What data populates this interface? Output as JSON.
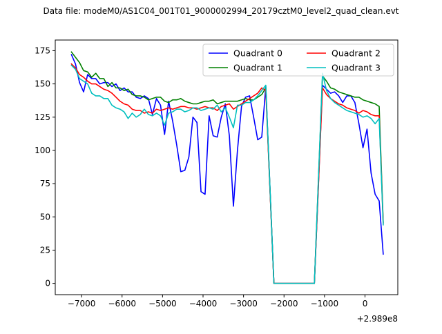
{
  "chart_data": {
    "type": "line",
    "title": "Data file: modeM0/AS1C04_001T01_9000002994_20179cztM0_level2_quad_clean.evt",
    "xlabel": "",
    "ylabel": "",
    "x_offset_label": "+2.989e8",
    "xlim": [
      -7650,
      810
    ],
    "ylim": [
      -8.5,
      183
    ],
    "xticks": [
      -7000,
      -6000,
      -5000,
      -4000,
      -3000,
      -2000,
      -1000,
      0
    ],
    "yticks": [
      0,
      25,
      50,
      75,
      100,
      125,
      150,
      175
    ],
    "grid": false,
    "legend": {
      "placement": "top-right",
      "columns": 2
    },
    "series": [
      {
        "name": "Quadrant 0",
        "color": "#0000ff",
        "points": [
          [
            -7250,
            172
          ],
          [
            -7150,
            165
          ],
          [
            -7050,
            151
          ],
          [
            -6950,
            144
          ],
          [
            -6850,
            157
          ],
          [
            -6750,
            154
          ],
          [
            -6650,
            154
          ],
          [
            -6550,
            150
          ],
          [
            -6450,
            151
          ],
          [
            -6350,
            151
          ],
          [
            -6250,
            148
          ],
          [
            -6150,
            150
          ],
          [
            -6050,
            145
          ],
          [
            -5950,
            147
          ],
          [
            -5850,
            144
          ],
          [
            -5750,
            144
          ],
          [
            -5650,
            140
          ],
          [
            -5550,
            139
          ],
          [
            -5450,
            141
          ],
          [
            -5350,
            139
          ],
          [
            -5250,
            127
          ],
          [
            -5150,
            139
          ],
          [
            -5050,
            134
          ],
          [
            -4950,
            112
          ],
          [
            -4850,
            137
          ],
          [
            -4750,
            122
          ],
          [
            -4650,
            104
          ],
          [
            -4550,
            84
          ],
          [
            -4450,
            85
          ],
          [
            -4350,
            95
          ],
          [
            -4250,
            125
          ],
          [
            -4150,
            121
          ],
          [
            -4050,
            69
          ],
          [
            -3950,
            67
          ],
          [
            -3850,
            126
          ],
          [
            -3750,
            111
          ],
          [
            -3650,
            110
          ],
          [
            -3550,
            125
          ],
          [
            -3450,
            135
          ],
          [
            -3350,
            111
          ],
          [
            -3250,
            58
          ],
          [
            -3150,
            100
          ],
          [
            -3050,
            133
          ],
          [
            -2950,
            140
          ],
          [
            -2850,
            141
          ],
          [
            -2750,
            125
          ],
          [
            -2650,
            108
          ],
          [
            -2550,
            110
          ],
          [
            -2450,
            148
          ],
          [
            -2250,
            0
          ],
          [
            -1250,
            0
          ],
          [
            -1050,
            149
          ],
          [
            -950,
            146
          ],
          [
            -850,
            143
          ],
          [
            -750,
            144
          ],
          [
            -650,
            141
          ],
          [
            -550,
            136
          ],
          [
            -450,
            141
          ],
          [
            -350,
            141
          ],
          [
            -250,
            136
          ],
          [
            -150,
            120
          ],
          [
            -50,
            102
          ],
          [
            50,
            116
          ],
          [
            150,
            83
          ],
          [
            250,
            67
          ],
          [
            350,
            62
          ],
          [
            450,
            22
          ]
        ]
      },
      {
        "name": "Quadrant 1",
        "color": "#008000",
        "points": [
          [
            -7250,
            174
          ],
          [
            -7150,
            170
          ],
          [
            -7050,
            166
          ],
          [
            -6950,
            160
          ],
          [
            -6850,
            159
          ],
          [
            -6750,
            155
          ],
          [
            -6650,
            158
          ],
          [
            -6550,
            154
          ],
          [
            -6450,
            154
          ],
          [
            -6350,
            148
          ],
          [
            -6250,
            151
          ],
          [
            -6150,
            147
          ],
          [
            -6050,
            147
          ],
          [
            -5950,
            145
          ],
          [
            -5850,
            146
          ],
          [
            -5750,
            142
          ],
          [
            -5650,
            141
          ],
          [
            -5550,
            141
          ],
          [
            -5450,
            140
          ],
          [
            -5350,
            138
          ],
          [
            -5250,
            139
          ],
          [
            -5150,
            140
          ],
          [
            -5050,
            140
          ],
          [
            -4950,
            137
          ],
          [
            -4850,
            136
          ],
          [
            -4750,
            138
          ],
          [
            -4650,
            138
          ],
          [
            -4550,
            139
          ],
          [
            -4450,
            137
          ],
          [
            -4350,
            136
          ],
          [
            -4250,
            135
          ],
          [
            -4150,
            135
          ],
          [
            -4050,
            136
          ],
          [
            -3950,
            137
          ],
          [
            -3850,
            137
          ],
          [
            -3750,
            138
          ],
          [
            -3650,
            135
          ],
          [
            -3550,
            136
          ],
          [
            -3450,
            137
          ],
          [
            -3350,
            137
          ],
          [
            -3250,
            137
          ],
          [
            -3150,
            137
          ],
          [
            -3050,
            138
          ],
          [
            -2950,
            139
          ],
          [
            -2850,
            138
          ],
          [
            -2750,
            138
          ],
          [
            -2650,
            140
          ],
          [
            -2550,
            142
          ],
          [
            -2450,
            147
          ],
          [
            -2250,
            0
          ],
          [
            -1250,
            0
          ],
          [
            -1050,
            156
          ],
          [
            -950,
            152
          ],
          [
            -850,
            147
          ],
          [
            -750,
            146
          ],
          [
            -650,
            144
          ],
          [
            -550,
            143
          ],
          [
            -450,
            142
          ],
          [
            -350,
            141
          ],
          [
            -250,
            140
          ],
          [
            -150,
            140
          ],
          [
            -50,
            138
          ],
          [
            50,
            137
          ],
          [
            150,
            136
          ],
          [
            250,
            135
          ],
          [
            350,
            133
          ],
          [
            450,
            46
          ]
        ]
      },
      {
        "name": "Quadrant 2",
        "color": "#ff0000",
        "points": [
          [
            -7250,
            165
          ],
          [
            -7150,
            162
          ],
          [
            -7050,
            157
          ],
          [
            -6950,
            155
          ],
          [
            -6850,
            152
          ],
          [
            -6750,
            150
          ],
          [
            -6650,
            150
          ],
          [
            -6550,
            148
          ],
          [
            -6450,
            146
          ],
          [
            -6350,
            145
          ],
          [
            -6250,
            143
          ],
          [
            -6150,
            140
          ],
          [
            -6050,
            137
          ],
          [
            -5950,
            135
          ],
          [
            -5850,
            134
          ],
          [
            -5750,
            131
          ],
          [
            -5650,
            130
          ],
          [
            -5550,
            130
          ],
          [
            -5450,
            128
          ],
          [
            -5350,
            129
          ],
          [
            -5250,
            128
          ],
          [
            -5150,
            131
          ],
          [
            -5050,
            130
          ],
          [
            -4950,
            131
          ],
          [
            -4850,
            132
          ],
          [
            -4750,
            131
          ],
          [
            -4650,
            132
          ],
          [
            -4550,
            133
          ],
          [
            -4450,
            133
          ],
          [
            -4350,
            132
          ],
          [
            -4250,
            132
          ],
          [
            -4150,
            131
          ],
          [
            -4050,
            132
          ],
          [
            -3950,
            133
          ],
          [
            -3850,
            132
          ],
          [
            -3750,
            132
          ],
          [
            -3650,
            130
          ],
          [
            -3550,
            133
          ],
          [
            -3450,
            134
          ],
          [
            -3350,
            135
          ],
          [
            -3250,
            131
          ],
          [
            -3150,
            133
          ],
          [
            -3050,
            135
          ],
          [
            -2950,
            137
          ],
          [
            -2850,
            139
          ],
          [
            -2750,
            141
          ],
          [
            -2650,
            143
          ],
          [
            -2550,
            147
          ],
          [
            -2450,
            145
          ],
          [
            -2250,
            0
          ],
          [
            -1250,
            0
          ],
          [
            -1050,
            147
          ],
          [
            -950,
            142
          ],
          [
            -850,
            139
          ],
          [
            -750,
            137
          ],
          [
            -650,
            135
          ],
          [
            -550,
            134
          ],
          [
            -450,
            132
          ],
          [
            -350,
            131
          ],
          [
            -250,
            130
          ],
          [
            -150,
            128
          ],
          [
            -50,
            130
          ],
          [
            50,
            129
          ],
          [
            150,
            127
          ],
          [
            250,
            126
          ],
          [
            350,
            126
          ],
          [
            450,
            45
          ]
        ]
      },
      {
        "name": "Quadrant 3",
        "color": "#00bfbf",
        "points": [
          [
            -7250,
            164
          ],
          [
            -7150,
            161
          ],
          [
            -7050,
            154
          ],
          [
            -6950,
            152
          ],
          [
            -6850,
            150
          ],
          [
            -6750,
            143
          ],
          [
            -6650,
            141
          ],
          [
            -6550,
            141
          ],
          [
            -6450,
            139
          ],
          [
            -6350,
            139
          ],
          [
            -6250,
            134
          ],
          [
            -6150,
            132
          ],
          [
            -6050,
            131
          ],
          [
            -5950,
            129
          ],
          [
            -5850,
            124
          ],
          [
            -5750,
            128
          ],
          [
            -5650,
            125
          ],
          [
            -5550,
            127
          ],
          [
            -5450,
            131
          ],
          [
            -5350,
            127
          ],
          [
            -5250,
            126
          ],
          [
            -5150,
            128
          ],
          [
            -5050,
            126
          ],
          [
            -4950,
            119
          ],
          [
            -4850,
            128
          ],
          [
            -4750,
            129
          ],
          [
            -4650,
            131
          ],
          [
            -4550,
            131
          ],
          [
            -4450,
            129
          ],
          [
            -4350,
            130
          ],
          [
            -4250,
            132
          ],
          [
            -4150,
            132
          ],
          [
            -4050,
            130
          ],
          [
            -3950,
            131
          ],
          [
            -3850,
            132
          ],
          [
            -3750,
            131
          ],
          [
            -3650,
            134
          ],
          [
            -3550,
            129
          ],
          [
            -3450,
            132
          ],
          [
            -3350,
            125
          ],
          [
            -3250,
            117
          ],
          [
            -3150,
            134
          ],
          [
            -3050,
            134
          ],
          [
            -2950,
            136
          ],
          [
            -2850,
            136
          ],
          [
            -2750,
            138
          ],
          [
            -2650,
            141
          ],
          [
            -2550,
            145
          ],
          [
            -2450,
            149
          ],
          [
            -2250,
            0
          ],
          [
            -1250,
            0
          ],
          [
            -1050,
            158
          ],
          [
            -950,
            145
          ],
          [
            -850,
            139
          ],
          [
            -750,
            136
          ],
          [
            -650,
            134
          ],
          [
            -550,
            132
          ],
          [
            -450,
            130
          ],
          [
            -350,
            129
          ],
          [
            -250,
            128
          ],
          [
            -150,
            127
          ],
          [
            -50,
            125
          ],
          [
            50,
            126
          ],
          [
            150,
            124
          ],
          [
            250,
            120
          ],
          [
            350,
            124
          ],
          [
            450,
            44
          ]
        ]
      }
    ]
  }
}
